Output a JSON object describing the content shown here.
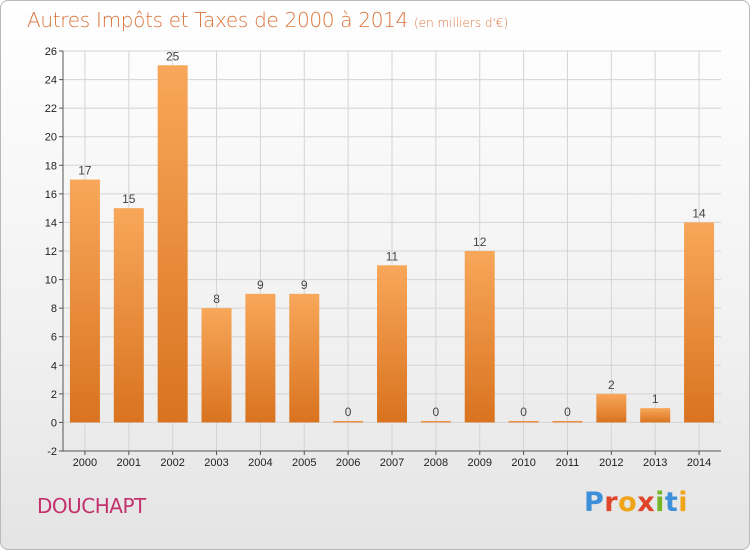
{
  "header": {
    "title": "Autres Impôts et Taxes de 2000 à 2014",
    "subtitle": "(en milliers d'€)"
  },
  "footer": {
    "commune": "DOUCHAPT",
    "logo": "Proxiti",
    "logo_colors": [
      "#3d8fd9",
      "#e0442a",
      "#f0a418",
      "#e0442a",
      "#77b528",
      "#3d8fd9",
      "#f0a418"
    ]
  },
  "colors": {
    "title": "#d9743c",
    "commune": "#c4326e",
    "bar_light": "#f8a75a",
    "bar_dark": "#d9731f",
    "grid": "#d4d4d4",
    "axis": "#555555"
  },
  "chart_data": {
    "type": "bar",
    "title": "Autres Impôts et Taxes de 2000 à 2014",
    "subtitle": "(en milliers d'€)",
    "categories": [
      "2000",
      "2001",
      "2002",
      "2003",
      "2004",
      "2005",
      "2006",
      "2007",
      "2008",
      "2009",
      "2010",
      "2011",
      "2012",
      "2013",
      "2014"
    ],
    "values": [
      17,
      15,
      25,
      8,
      9,
      9,
      0,
      11,
      0,
      12,
      0,
      0,
      2,
      1,
      14
    ],
    "ylim": [
      -2,
      26
    ],
    "yticks": [
      -2,
      0,
      2,
      4,
      6,
      8,
      10,
      12,
      14,
      16,
      18,
      20,
      22,
      24,
      26
    ],
    "grid": true,
    "data_labels": true
  }
}
